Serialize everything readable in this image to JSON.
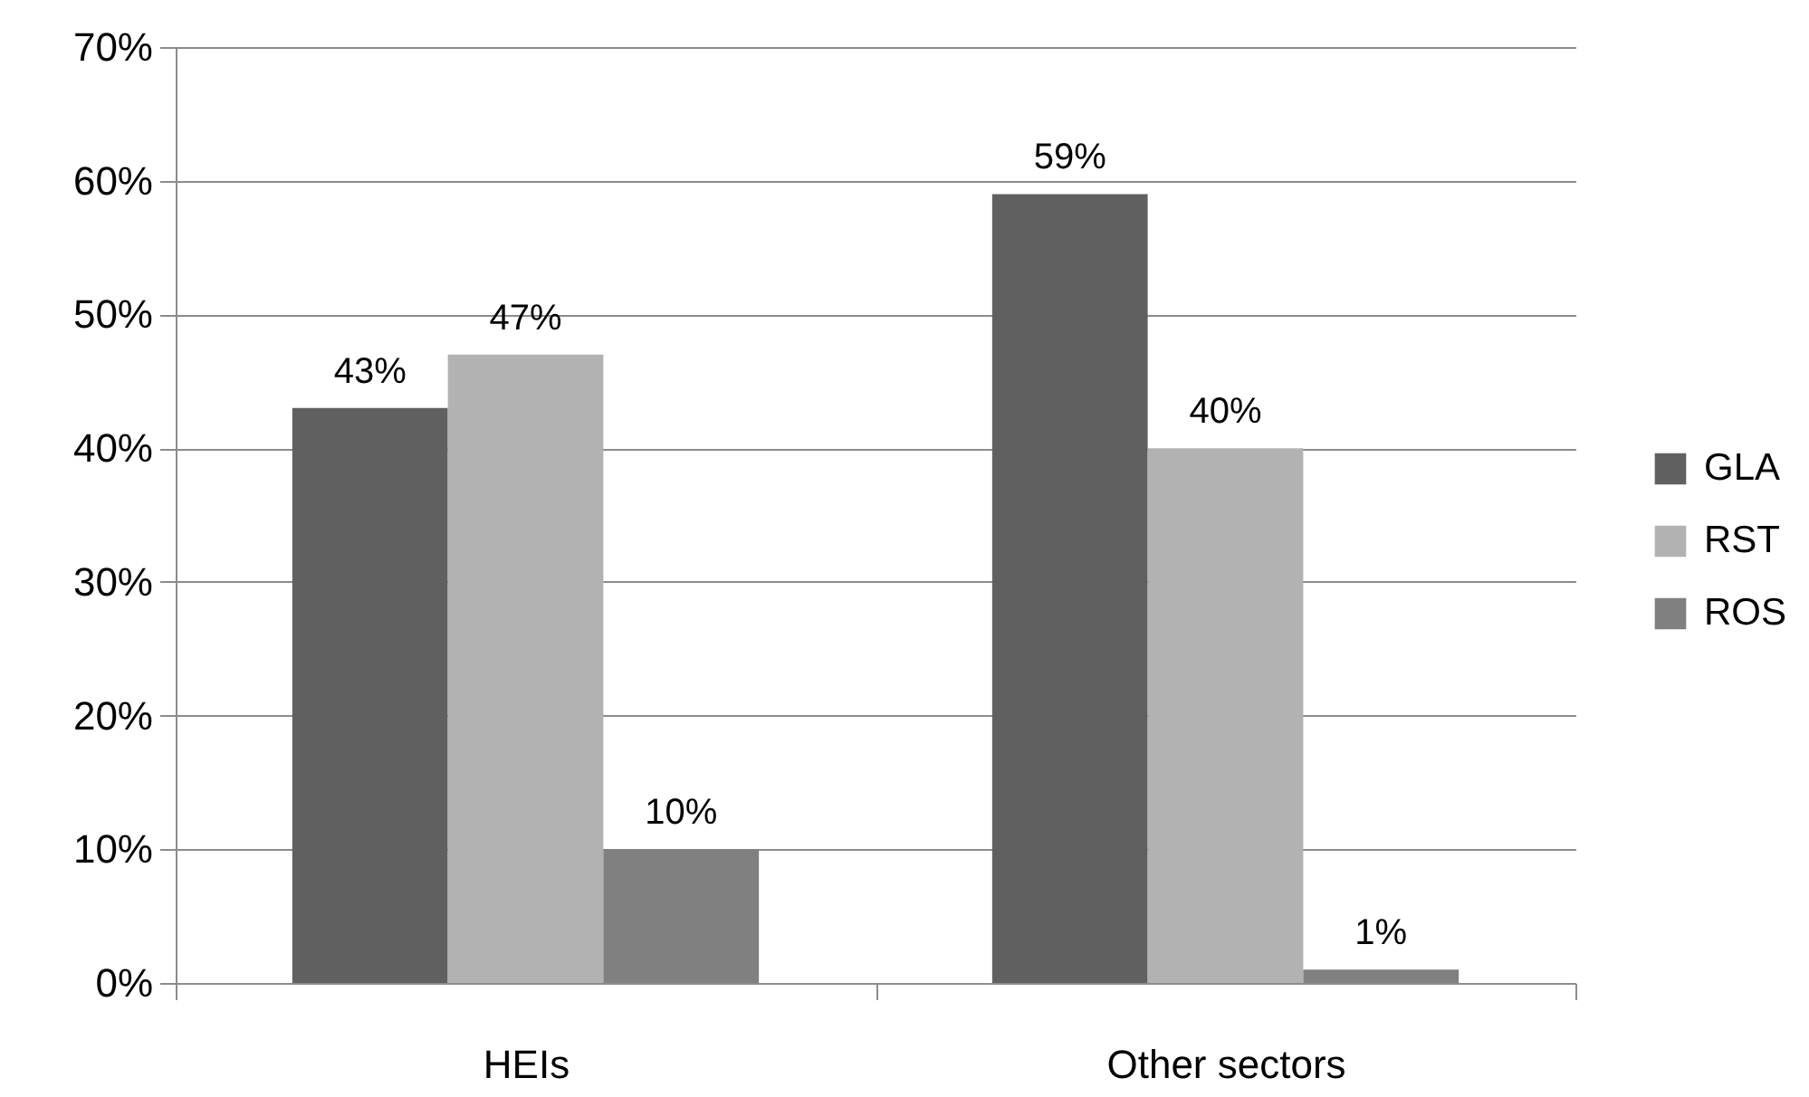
{
  "chart_data": {
    "type": "bar",
    "categories": [
      "HEIs",
      "Other sectors"
    ],
    "series": [
      {
        "name": "GLA",
        "color": "#606060",
        "values": [
          43,
          59
        ],
        "value_labels": [
          "43%",
          "59%"
        ]
      },
      {
        "name": "RST",
        "color": "#b2b2b2",
        "values": [
          47,
          40
        ],
        "value_labels": [
          "47%",
          "40%"
        ]
      },
      {
        "name": "ROS",
        "color": "#808080",
        "values": [
          10,
          1
        ],
        "value_labels": [
          "10%",
          "1%"
        ]
      }
    ],
    "ylim": [
      0,
      70
    ],
    "yticks": [
      {
        "value": 0,
        "label": "0%"
      },
      {
        "value": 10,
        "label": "10%"
      },
      {
        "value": 20,
        "label": "20%"
      },
      {
        "value": 30,
        "label": "30%"
      },
      {
        "value": 40,
        "label": "40%"
      },
      {
        "value": 50,
        "label": "50%"
      },
      {
        "value": 60,
        "label": "60%"
      },
      {
        "value": 70,
        "label": "70%"
      }
    ],
    "grid": "y",
    "legend": "right"
  }
}
